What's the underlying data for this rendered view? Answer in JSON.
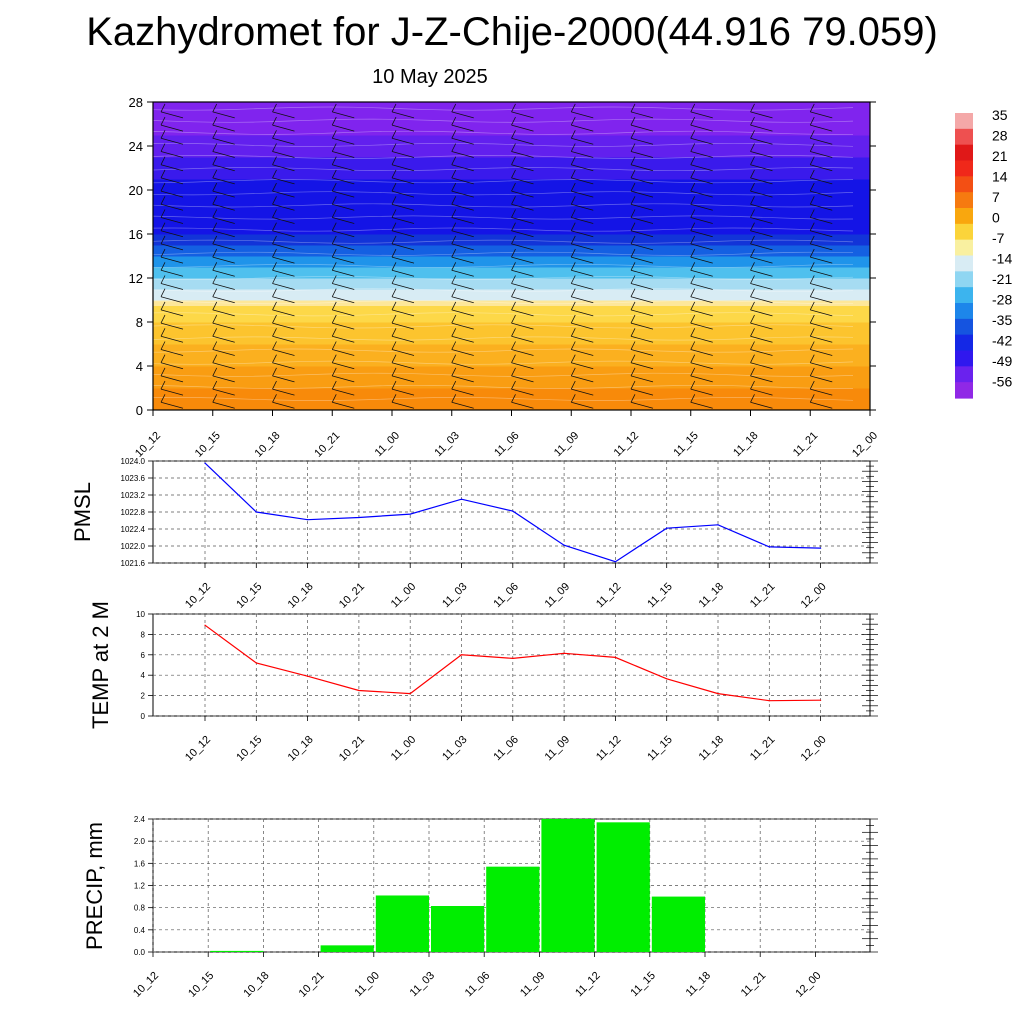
{
  "page": {
    "title": "Kazhydromet for J-Z-Chije-2000(44.916 79.059)",
    "subtitle": "10 May 2025"
  },
  "chart_data": [
    {
      "type": "heatmap",
      "name": "cross-section",
      "title": "",
      "x_categories": [
        "10_12",
        "10_15",
        "10_18",
        "10_21",
        "11_00",
        "11_03",
        "11_06",
        "11_09",
        "11_12",
        "11_15",
        "11_18",
        "11_21",
        "12_00"
      ],
      "yticks": [
        0,
        4,
        8,
        12,
        16,
        20,
        24,
        28
      ],
      "ylim": [
        0,
        28
      ],
      "colorbar_labels": [
        "35",
        "28",
        "21",
        "14",
        "7",
        "0",
        "-7",
        "-14",
        "-21",
        "-28",
        "-35",
        "-42",
        "-49",
        "-56"
      ],
      "bands": [
        {
          "from": 0,
          "to": 2,
          "color": "#f88a0a"
        },
        {
          "from": 2,
          "to": 4,
          "color": "#f99d12"
        },
        {
          "from": 4,
          "to": 6,
          "color": "#fbb01f"
        },
        {
          "from": 6,
          "to": 8,
          "color": "#fcc42e"
        },
        {
          "from": 8,
          "to": 9.5,
          "color": "#fdd848"
        },
        {
          "from": 9.5,
          "to": 10,
          "color": "#fde79a"
        },
        {
          "from": 10,
          "to": 11,
          "color": "#d8ecf4"
        },
        {
          "from": 11,
          "to": 12,
          "color": "#a6dcf2"
        },
        {
          "from": 12,
          "to": 13,
          "color": "#4fc0ee"
        },
        {
          "from": 13,
          "to": 14,
          "color": "#1f94ea"
        },
        {
          "from": 14,
          "to": 15,
          "color": "#1460e2"
        },
        {
          "from": 15,
          "to": 16,
          "color": "#1234d8"
        },
        {
          "from": 16,
          "to": 21,
          "color": "#1414e6"
        },
        {
          "from": 21,
          "to": 23,
          "color": "#3a1aec"
        },
        {
          "from": 23,
          "to": 25,
          "color": "#6220ee"
        },
        {
          "from": 25,
          "to": 28,
          "color": "#8024ee"
        }
      ]
    },
    {
      "type": "line",
      "name": "PMSL",
      "ylabel": "PMSL",
      "categories": [
        "10_12",
        "10_15",
        "10_18",
        "10_21",
        "11_00",
        "11_03",
        "11_06",
        "11_09",
        "11_12",
        "11_15",
        "11_18",
        "11_21",
        "12_00"
      ],
      "values": [
        1023.95,
        1022.8,
        1022.62,
        1022.67,
        1022.75,
        1023.1,
        1022.82,
        1022.02,
        1021.63,
        1022.42,
        1022.5,
        1021.98,
        1021.95
      ],
      "ylim": [
        1021.6,
        1024.0
      ],
      "yticks": [
        "1021.6",
        "1022.0",
        "1022.4",
        "1022.8",
        "1023.2",
        "1023.6",
        "1024.0"
      ],
      "color": "#0000ff"
    },
    {
      "type": "line",
      "name": "TEMP at 2 M",
      "ylabel": "TEMP at 2 M",
      "categories": [
        "10_12",
        "10_15",
        "10_18",
        "10_21",
        "11_00",
        "11_03",
        "11_06",
        "11_09",
        "11_12",
        "11_15",
        "11_18",
        "11_21",
        "12_00"
      ],
      "values": [
        8.9,
        5.2,
        3.9,
        2.5,
        2.2,
        6.0,
        5.65,
        6.15,
        5.75,
        3.65,
        2.2,
        1.5,
        1.55
      ],
      "ylim": [
        0,
        10
      ],
      "yticks": [
        "0",
        "2",
        "4",
        "6",
        "8",
        "10"
      ],
      "color": "#ff0000"
    },
    {
      "type": "bar",
      "name": "PRECIP, mm",
      "ylabel": "PRECIP, mm",
      "categories": [
        "10_12",
        "10_15",
        "10_18",
        "10_21",
        "11_00",
        "11_03",
        "11_06",
        "11_09",
        "11_12",
        "11_15",
        "11_18",
        "11_21",
        "12_00"
      ],
      "values": [
        0,
        0.02,
        0,
        0.12,
        1.02,
        0.83,
        1.54,
        2.4,
        2.34,
        1.0,
        0,
        0,
        0
      ],
      "ylim": [
        0,
        2.4
      ],
      "yticks": [
        "0.0",
        "0.4",
        "0.8",
        "1.2",
        "1.6",
        "2.0",
        "2.4"
      ],
      "color": "#00ee00"
    }
  ]
}
